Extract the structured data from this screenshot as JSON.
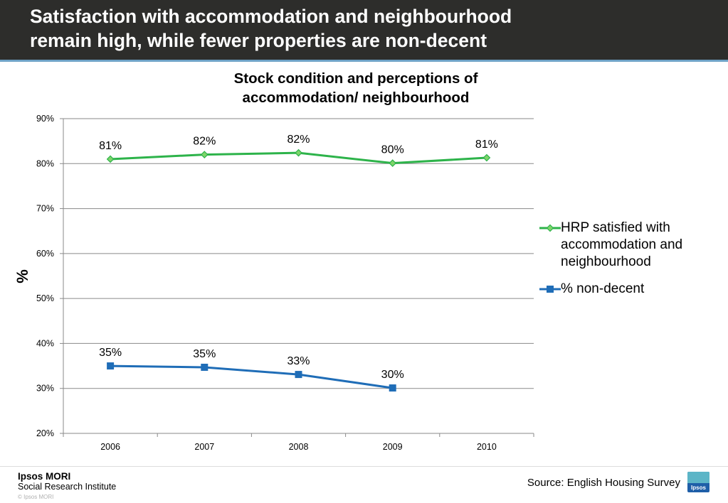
{
  "header": {
    "title_line1": "Satisfaction with accommodation and neighbourhood",
    "title_line2": "remain high, while fewer properties are non-decent"
  },
  "chart_data": {
    "type": "line",
    "title_line1": "Stock condition and perceptions of",
    "title_line2": "accommodation/ neighbourhood",
    "ylabel": "%",
    "xlabel": "",
    "categories": [
      "2006",
      "2007",
      "2008",
      "2009",
      "2010"
    ],
    "ylim": [
      20,
      90
    ],
    "yticks": [
      20,
      30,
      40,
      50,
      60,
      70,
      80,
      90
    ],
    "ytick_labels": [
      "20%",
      "30%",
      "40%",
      "50%",
      "60%",
      "70%",
      "80%",
      "90%"
    ],
    "grid": true,
    "legend_position": "right",
    "series": [
      {
        "name": "HRP satisfied with accommodation and neighbourhood",
        "name_lines": [
          "HRP satisfied with",
          "accommodation and",
          "neighbourhood"
        ],
        "color": "#2db34a",
        "marker": "diamond",
        "values": [
          81,
          82,
          82.4,
          80.1,
          81.3
        ],
        "labels": [
          "81%",
          "82%",
          "82%",
          "80%",
          "81%"
        ]
      },
      {
        "name": "% non-decent",
        "name_lines": [
          "% non-decent"
        ],
        "color": "#1f6db7",
        "marker": "square",
        "values": [
          35,
          34.7,
          33.1,
          30.1,
          null
        ],
        "labels": [
          "35%",
          "35%",
          "33%",
          "30%",
          null
        ]
      }
    ]
  },
  "footer": {
    "brand_name": "Ipsos MORI",
    "brand_sub": "Social Research Institute",
    "copyright": "© Ipsos MORI",
    "source": "Source: English Housing Survey",
    "logo_text": "Ipsos"
  }
}
